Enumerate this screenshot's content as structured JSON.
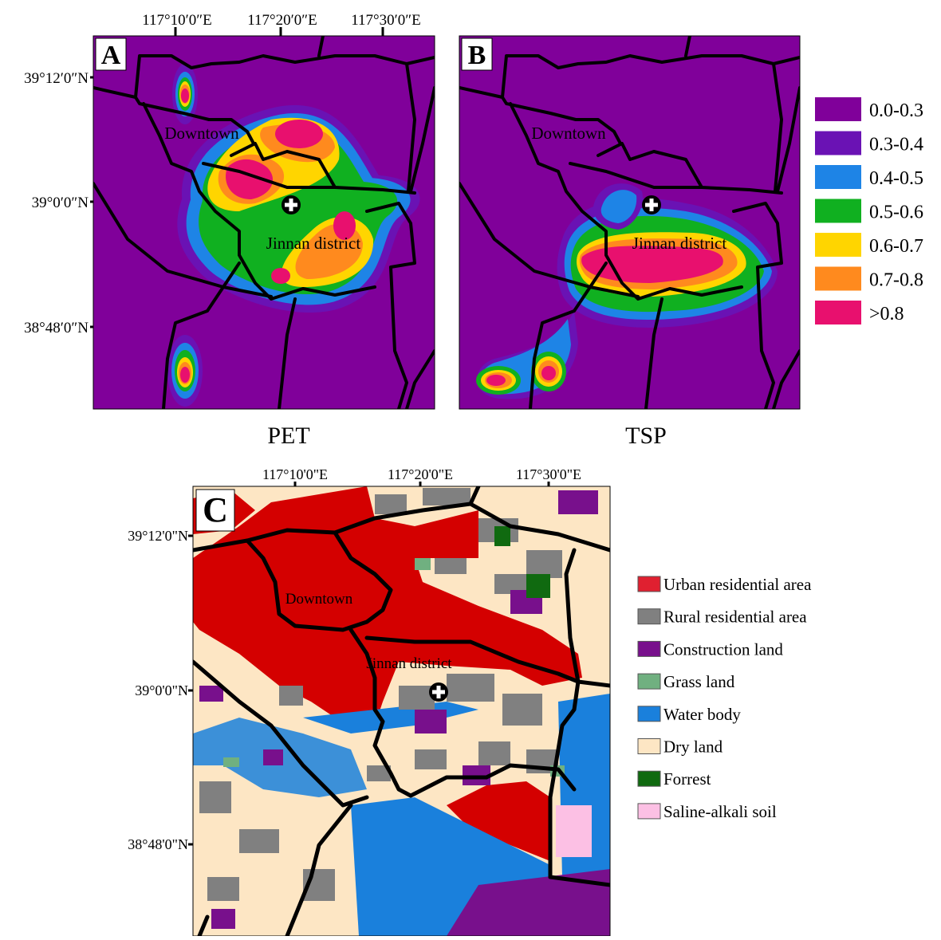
{
  "panels": [
    {
      "label": "A",
      "caption": "PET",
      "x_labels": [
        "117°10′0″E",
        "117°20′0″E",
        "117°30′0″E"
      ],
      "y_labels": [
        "39°12′0″N",
        "39°0′0″N",
        "38°48′0″N"
      ],
      "places": [
        "Downtown",
        "Jinnan district"
      ]
    },
    {
      "label": "B",
      "caption": "TSP",
      "places": [
        "Downtown",
        "Jinnan district"
      ]
    },
    {
      "label": "C",
      "x_labels": [
        "117°10'0\"E",
        "117°20'0\"E",
        "117°30'0\"E"
      ],
      "y_labels": [
        "39°12'0\"N",
        "39°0'0\"N",
        "38°48'0\"N"
      ],
      "places": [
        "Downtown",
        "Jinnan district"
      ]
    }
  ],
  "legend_ab": [
    {
      "label": "0.0-0.3",
      "color": "#80009a"
    },
    {
      "label": "0.3-0.4",
      "color": "#6a12b4"
    },
    {
      "label": "0.4-0.5",
      "color": "#1e84e6"
    },
    {
      "label": "0.5-0.6",
      "color": "#10b020"
    },
    {
      "label": "0.6-0.7",
      "color": "#ffd500"
    },
    {
      "label": "0.7-0.8",
      "color": "#ff8a1e"
    },
    {
      "label": ">0.8",
      "color": "#e8106e"
    }
  ],
  "legend_c": [
    {
      "label": "Urban residential area",
      "color": "#e02030"
    },
    {
      "label": "Rural residential area",
      "color": "#808080"
    },
    {
      "label": "Construction land",
      "color": "#78108c"
    },
    {
      "label": "Grass land",
      "color": "#70b080"
    },
    {
      "label": "Water body",
      "color": "#1a80dc"
    },
    {
      "label": "Dry land",
      "color": "#fde6c4"
    },
    {
      "label": "Forrest",
      "color": "#106a10"
    },
    {
      "label": "Saline-alkali soil",
      "color": "#fcc0e4"
    }
  ]
}
